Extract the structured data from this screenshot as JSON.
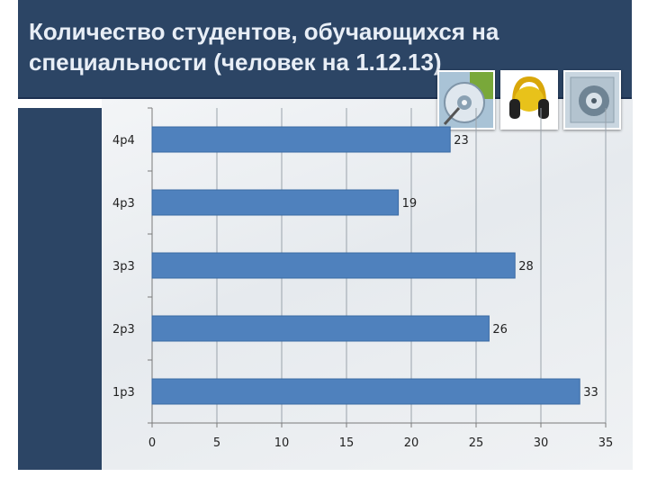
{
  "slide": {
    "title_line1": "Количество студентов, обучающихся на",
    "title_line2": "специальности (человек на 1.12.13)"
  },
  "images": [
    {
      "icon": "cd-disc-icon"
    },
    {
      "icon": "headphones-icon"
    },
    {
      "icon": "speaker-icon"
    }
  ],
  "colors": {
    "header": "#2c4565",
    "bar": "#4f81bd",
    "bar_edge": "#3a6aa4"
  },
  "chart_data": {
    "type": "bar",
    "orientation": "horizontal",
    "title": "",
    "xlabel": "",
    "ylabel": "",
    "categories": [
      "4р4",
      "4р3",
      "3р3",
      "2р3",
      "1р3"
    ],
    "values": [
      23,
      19,
      28,
      26,
      33
    ],
    "xlim": [
      0,
      35
    ],
    "xticks": [
      0,
      5,
      10,
      15,
      20,
      25,
      30,
      35
    ],
    "grid": "vertical",
    "legend": "none",
    "data_labels": true
  }
}
